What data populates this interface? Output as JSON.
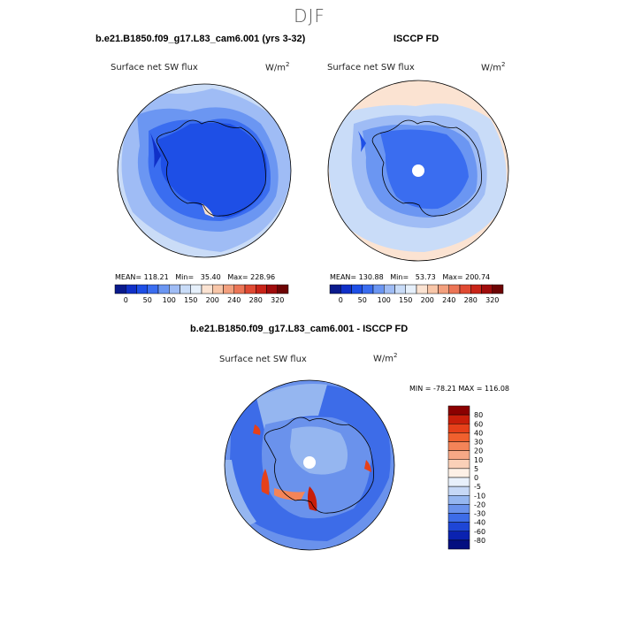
{
  "figure": {
    "title": "DJF"
  },
  "panels": {
    "model": {
      "title": "b.e21.B1850.f09_g17.L83_cam6.001 (yrs 3-32)",
      "variable": "Surface net SW flux",
      "units_base": "W/m",
      "units_exp": "2",
      "stats": "MEAN= 118.21   Min=   35.40   Max= 228.96"
    },
    "obs": {
      "title": "ISCCP FD",
      "variable": "Surface net SW flux",
      "units_base": "W/m",
      "units_exp": "2",
      "stats": "MEAN= 130.88   Min=   53.73   Max= 200.74"
    },
    "diff": {
      "title": "b.e21.B1850.f09_g17.L83_cam6.001 - ISCCP FD",
      "variable": "Surface net SW flux",
      "units_base": "W/m",
      "units_exp": "2",
      "stats": "MIN = -78.21 MAX = 116.08"
    }
  },
  "chart_data": [
    {
      "type": "heatmap",
      "title": "b.e21.B1850.f09_g17.L83_cam6.001 (yrs 3-32)",
      "variable": "Surface net SW flux",
      "units": "W/m2",
      "projection": "south-polar-stereographic",
      "stats": {
        "mean": 118.21,
        "min": 35.4,
        "max": 228.96
      },
      "colorbar": {
        "orientation": "horizontal",
        "tick_labels": [
          "0",
          "50",
          "100",
          "150",
          "200",
          "240",
          "280",
          "320"
        ],
        "colors": [
          "#0a1a8c",
          "#1030c8",
          "#1e4fe6",
          "#3a6df0",
          "#6b96f2",
          "#9fbcf5",
          "#c9dcf8",
          "#e6f0fb",
          "#fbe3d2",
          "#f8c6a8",
          "#f3a07e",
          "#ec7556",
          "#e04a33",
          "#c92418",
          "#a00c0c",
          "#6d0404"
        ]
      }
    },
    {
      "type": "heatmap",
      "title": "ISCCP FD",
      "variable": "Surface net SW flux",
      "units": "W/m2",
      "projection": "south-polar-stereographic",
      "stats": {
        "mean": 130.88,
        "min": 53.73,
        "max": 200.74
      },
      "colorbar": {
        "orientation": "horizontal",
        "tick_labels": [
          "0",
          "50",
          "100",
          "150",
          "200",
          "240",
          "280",
          "320"
        ],
        "colors": [
          "#0a1a8c",
          "#1030c8",
          "#1e4fe6",
          "#3a6df0",
          "#6b96f2",
          "#9fbcf5",
          "#c9dcf8",
          "#e6f0fb",
          "#fbe3d2",
          "#f8c6a8",
          "#f3a07e",
          "#ec7556",
          "#e04a33",
          "#c92418",
          "#a00c0c",
          "#6d0404"
        ]
      }
    },
    {
      "type": "heatmap",
      "title": "b.e21.B1850.f09_g17.L83_cam6.001 - ISCCP FD",
      "variable": "Surface net SW flux",
      "units": "W/m2",
      "projection": "south-polar-stereographic",
      "stats": {
        "min": -78.21,
        "max": 116.08
      },
      "colorbar": {
        "orientation": "vertical",
        "tick_labels": [
          "80",
          "60",
          "40",
          "30",
          "20",
          "10",
          "5",
          "0",
          "-5",
          "-10",
          "-20",
          "-30",
          "-40",
          "-60",
          "-80"
        ],
        "colors": [
          "#8b0000",
          "#c81e0a",
          "#e6401a",
          "#f0602e",
          "#f48458",
          "#f7a886",
          "#fad0b8",
          "#fdf0e6",
          "#e8f0fb",
          "#c6d8f6",
          "#95b6f0",
          "#6a92ec",
          "#3d6ce8",
          "#1e46d6",
          "#0a22b0",
          "#030f80"
        ]
      }
    }
  ]
}
